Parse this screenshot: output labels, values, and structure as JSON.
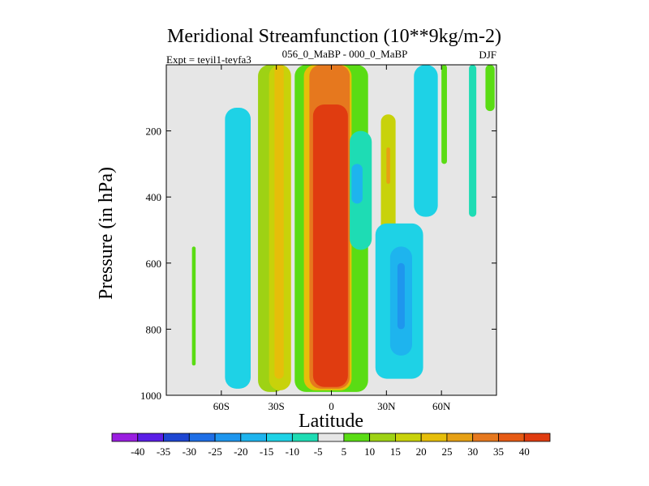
{
  "chart_data": {
    "type": "heatmap",
    "title": "Meridional Streamfunction (10**9kg/m-2)",
    "subtitle_left": "Expt = teyil1-teyfa3",
    "subtitle_center": "056_0_MaBP - 000_0_MaBP",
    "subtitle_right": "DJF",
    "xlabel": "Latitude",
    "ylabel": "Pressure (in hPa)",
    "xlim": [
      -90,
      90
    ],
    "ylim": [
      1000,
      0
    ],
    "x_ticks": [
      {
        "value": -60,
        "label": "60S"
      },
      {
        "value": -30,
        "label": "30S"
      },
      {
        "value": 0,
        "label": "0"
      },
      {
        "value": 30,
        "label": "30N"
      },
      {
        "value": 60,
        "label": "60N"
      }
    ],
    "y_ticks": [
      {
        "value": 200,
        "label": "200"
      },
      {
        "value": 400,
        "label": "400"
      },
      {
        "value": 600,
        "label": "600"
      },
      {
        "value": 800,
        "label": "800"
      },
      {
        "value": 1000,
        "label": "1000"
      }
    ],
    "background_color": "#e6e6e6",
    "colorbar": {
      "labels": [
        "-40",
        "-35",
        "-30",
        "-25",
        "-20",
        "-15",
        "-10",
        "-5",
        "5",
        "10",
        "15",
        "20",
        "25",
        "30",
        "35",
        "40"
      ],
      "colors": [
        "#9a1ee0",
        "#5a1ee6",
        "#1e46d2",
        "#1e6ee6",
        "#1e96ee",
        "#1eb4ee",
        "#1ed2e6",
        "#1edcb4",
        "#e6e6e6",
        "#5adc14",
        "#9ed214",
        "#c8d20a",
        "#e6be0a",
        "#e6a014",
        "#e6781e",
        "#e65a14",
        "#e03c10"
      ]
    },
    "regions": [
      {
        "lat_min": -58,
        "lat_max": -44,
        "p_top": 130,
        "p_bottom": 980,
        "value": -12
      },
      {
        "lat_min": -49,
        "lat_max": -47,
        "p_top": 500,
        "p_bottom": 900,
        "value": -15
      },
      {
        "lat_min": -76,
        "lat_max": -74,
        "p_top": 550,
        "p_bottom": 910,
        "value": 8
      },
      {
        "lat_min": -40,
        "lat_max": -25,
        "p_top": 0,
        "p_bottom": 990,
        "value": 10
      },
      {
        "lat_min": -34,
        "lat_max": -22,
        "p_top": 0,
        "p_bottom": 985,
        "value": 18
      },
      {
        "lat_min": -31,
        "lat_max": -26,
        "p_top": 0,
        "p_bottom": 950,
        "value": 22
      },
      {
        "lat_min": -20,
        "lat_max": 20,
        "p_top": 0,
        "p_bottom": 990,
        "value": 8
      },
      {
        "lat_min": -15,
        "lat_max": 11,
        "p_top": 0,
        "p_bottom": 985,
        "value": 22
      },
      {
        "lat_min": -12,
        "lat_max": 10,
        "p_top": 0,
        "p_bottom": 980,
        "value": 30
      },
      {
        "lat_min": -10,
        "lat_max": 9,
        "p_top": 120,
        "p_bottom": 975,
        "value": 40
      },
      {
        "lat_min": 10,
        "lat_max": 22,
        "p_top": 200,
        "p_bottom": 560,
        "value": -10
      },
      {
        "lat_min": 11,
        "lat_max": 17,
        "p_top": 300,
        "p_bottom": 420,
        "value": -20
      },
      {
        "lat_min": 27,
        "lat_max": 35,
        "p_top": 150,
        "p_bottom": 580,
        "value": 15
      },
      {
        "lat_min": 30,
        "lat_max": 32,
        "p_top": 250,
        "p_bottom": 360,
        "value": 28
      },
      {
        "lat_min": 24,
        "lat_max": 50,
        "p_top": 480,
        "p_bottom": 950,
        "value": -12
      },
      {
        "lat_min": 32,
        "lat_max": 44,
        "p_top": 550,
        "p_bottom": 880,
        "value": -20
      },
      {
        "lat_min": 36,
        "lat_max": 40,
        "p_top": 600,
        "p_bottom": 800,
        "value": -25
      },
      {
        "lat_min": 45,
        "lat_max": 58,
        "p_top": 0,
        "p_bottom": 460,
        "value": -12
      },
      {
        "lat_min": 60,
        "lat_max": 63,
        "p_top": 0,
        "p_bottom": 300,
        "value": 8
      },
      {
        "lat_min": 75,
        "lat_max": 79,
        "p_top": 0,
        "p_bottom": 460,
        "value": -8
      },
      {
        "lat_min": 84,
        "lat_max": 89,
        "p_top": 0,
        "p_bottom": 140,
        "value": 6
      }
    ]
  }
}
